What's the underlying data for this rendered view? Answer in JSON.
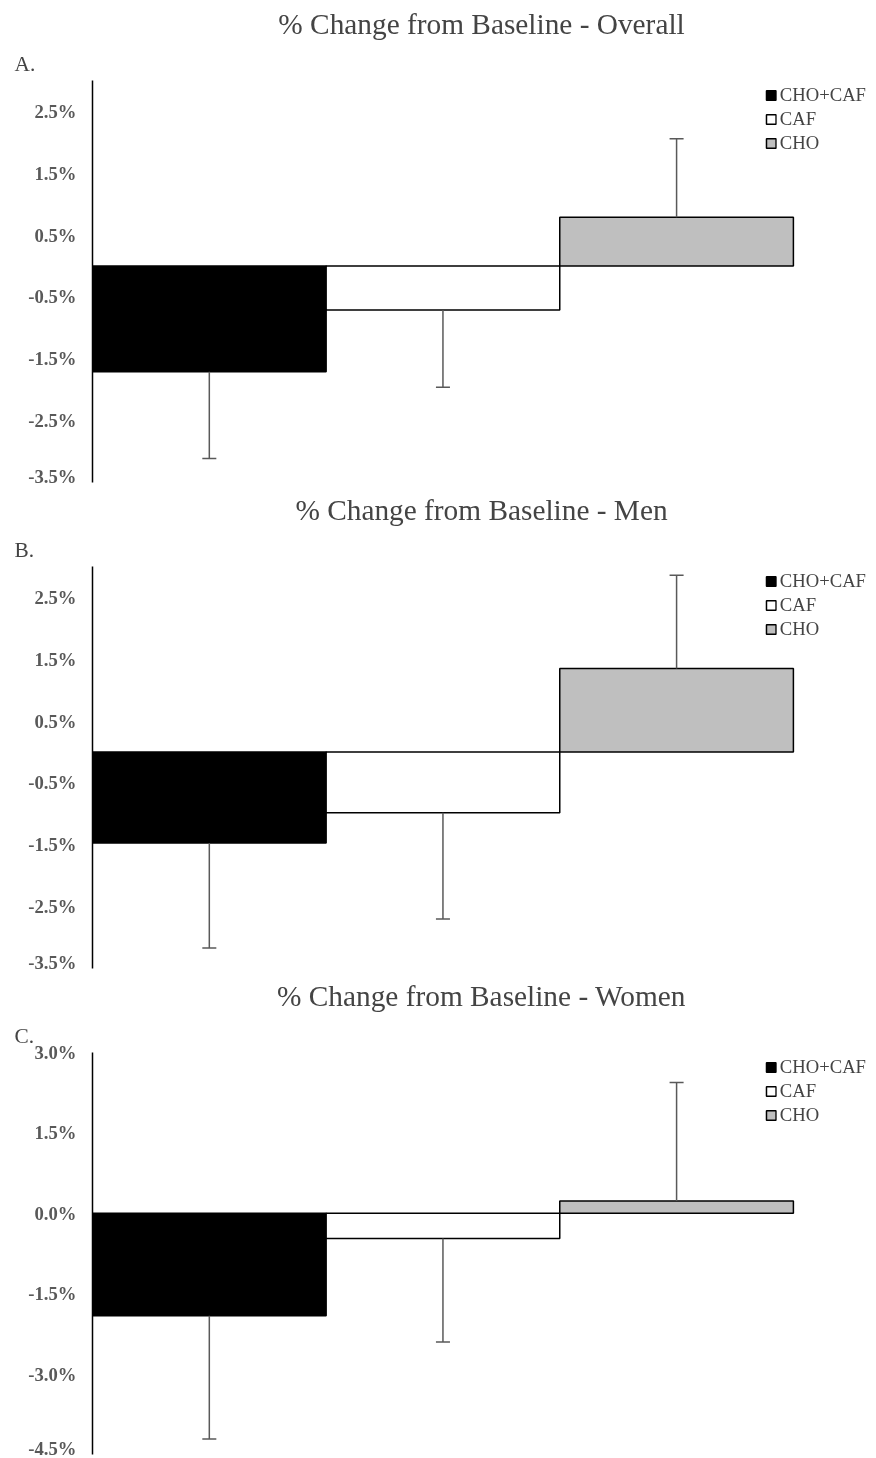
{
  "chart_data": [
    {
      "type": "bar",
      "title": "% Change from Baseline - Overall",
      "annotations": [
        "A."
      ],
      "categories": [
        null
      ],
      "legend": "top right",
      "grid": false,
      "ylim": [
        -3.5,
        3.0
      ],
      "yticks": [
        {
          "value": 2.5,
          "label": "2.5%"
        },
        {
          "value": 1.5,
          "label": "1.5%"
        },
        {
          "value": 0.5,
          "label": "0.5%"
        },
        {
          "value": -0.5,
          "label": "-0.5%"
        },
        {
          "value": -1.5,
          "label": "-1.5%"
        },
        {
          "value": -2.5,
          "label": "-2.5%"
        },
        {
          "value": -3.5,
          "label": "-3.5%"
        }
      ],
      "tick_labels": "y",
      "series": [
        {
          "name": "CHO+CAF",
          "color": "#000000",
          "values": [
            -1.71
          ],
          "errors": [
            [
              -3.11,
              -1.71
            ]
          ]
        },
        {
          "name": "CAF",
          "color": "#ffffff",
          "values": [
            -0.71
          ],
          "errors": [
            [
              -1.96,
              -0.71
            ]
          ]
        },
        {
          "name": "CHO",
          "color": "#bfbfbf",
          "values": [
            0.79
          ],
          "errors": [
            [
              0.79,
              2.06
            ]
          ]
        }
      ]
    },
    {
      "type": "bar",
      "title": "% Change from Baseline - Men",
      "annotations": [
        "B."
      ],
      "categories": [
        null
      ],
      "legend": "top right",
      "grid": false,
      "ylim": [
        -3.5,
        3.0
      ],
      "yticks": [
        {
          "value": 2.5,
          "label": "2.5%"
        },
        {
          "value": 1.5,
          "label": "1.5%"
        },
        {
          "value": 0.5,
          "label": "0.5%"
        },
        {
          "value": -0.5,
          "label": "-0.5%"
        },
        {
          "value": -1.5,
          "label": "-1.5%"
        },
        {
          "value": -2.5,
          "label": "-2.5%"
        },
        {
          "value": -3.5,
          "label": "-3.5%"
        }
      ],
      "tick_labels": "y",
      "series": [
        {
          "name": "CHO+CAF",
          "color": "#000000",
          "values": [
            -1.47
          ],
          "errors": [
            [
              -3.17,
              -1.47
            ]
          ]
        },
        {
          "name": "CAF",
          "color": "#ffffff",
          "values": [
            -0.98
          ],
          "errors": [
            [
              -2.7,
              -0.98
            ]
          ]
        },
        {
          "name": "CHO",
          "color": "#bfbfbf",
          "values": [
            1.35
          ],
          "errors": [
            [
              1.35,
              2.86
            ]
          ]
        }
      ]
    },
    {
      "type": "bar",
      "title": "% Change from Baseline - Women",
      "annotations": [
        "C."
      ],
      "categories": [
        null
      ],
      "legend": "top right",
      "grid": false,
      "ylim": [
        -4.5,
        3.0
      ],
      "yticks": [
        {
          "value": 3.0,
          "label": "3.0%"
        },
        {
          "value": 1.5,
          "label": "1.5%"
        },
        {
          "value": 0.0,
          "label": "0.0%"
        },
        {
          "value": -1.5,
          "label": "-1.5%"
        },
        {
          "value": -3.0,
          "label": "-3.0%"
        },
        {
          "value": -4.5,
          "label": "-4.5%"
        }
      ],
      "tick_labels": "y",
      "series": [
        {
          "name": "CHO+CAF",
          "color": "#000000",
          "values": [
            -1.91
          ],
          "errors": [
            [
              -4.21,
              -1.91
            ]
          ]
        },
        {
          "name": "CAF",
          "color": "#ffffff",
          "values": [
            -0.47
          ],
          "errors": [
            [
              -2.4,
              -0.47
            ]
          ]
        },
        {
          "name": "CHO",
          "color": "#bfbfbf",
          "values": [
            0.23
          ],
          "errors": [
            [
              0.23,
              2.44
            ]
          ]
        }
      ]
    }
  ]
}
